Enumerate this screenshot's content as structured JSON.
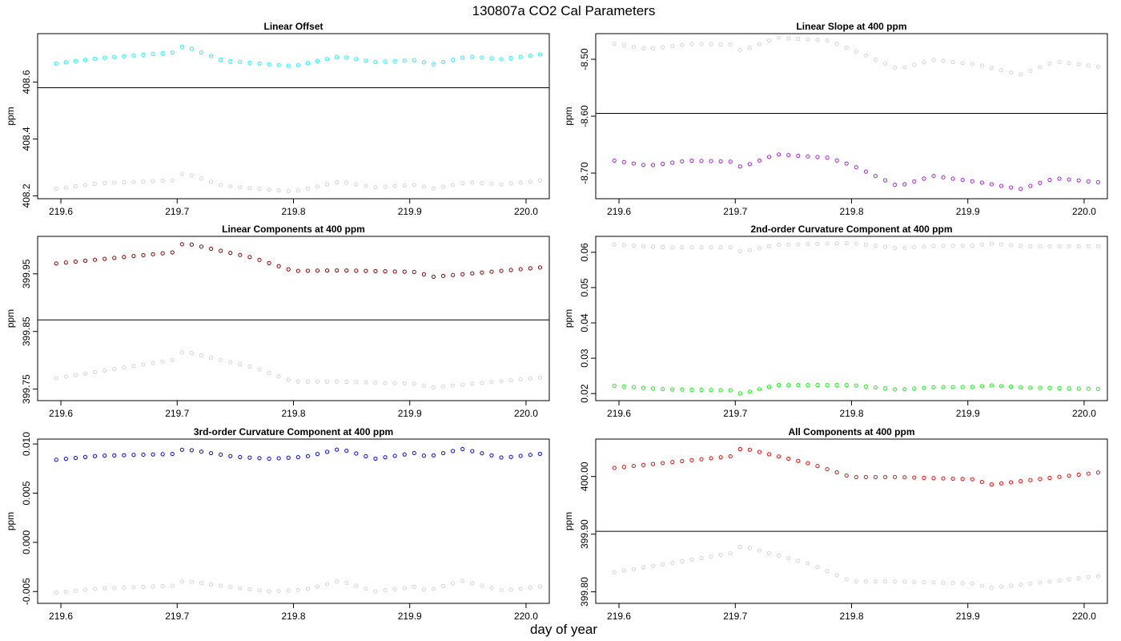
{
  "figure": {
    "title": "130807a   CO2 Cal Parameters",
    "xlabel": "day of year"
  },
  "colors": {
    "reference": "#d3d3d3",
    "hline": "#000000",
    "frame": "#000000"
  },
  "chart_data": [
    {
      "type": "scatter",
      "title": "Linear Offset",
      "xlabel": "",
      "ylabel": "ppm",
      "xlim": [
        219.58,
        220.02
      ],
      "ylim": [
        408.19,
        408.77
      ],
      "x_ticks": [
        "219.6",
        "219.7",
        "219.8",
        "219.9",
        "220.0"
      ],
      "y_ticks": [
        "408.2",
        "408.4",
        "408.6"
      ],
      "y_tick_values": [
        408.2,
        408.4,
        408.6
      ],
      "hline": 408.58,
      "x": {
        "start": 219.596,
        "stop": 220.012,
        "count": 51
      },
      "series": [
        {
          "color": "#00ffff",
          "knots": [
            [
              219.596,
              408.665
            ],
            [
              219.633,
              408.684
            ],
            [
              219.7,
              408.705
            ],
            [
              219.705,
              408.728
            ],
            [
              219.74,
              408.675
            ],
            [
              219.8,
              408.656
            ],
            [
              219.84,
              408.69
            ],
            [
              219.87,
              408.67
            ],
            [
              219.91,
              408.678
            ],
            [
              219.915,
              408.658
            ],
            [
              219.95,
              408.69
            ],
            [
              219.98,
              408.68
            ],
            [
              220.012,
              408.697
            ]
          ]
        },
        {
          "color": "#d3d3d3",
          "knots": [
            [
              219.596,
              408.225
            ],
            [
              219.633,
              408.244
            ],
            [
              219.7,
              408.255
            ],
            [
              219.705,
              408.282
            ],
            [
              219.74,
              408.235
            ],
            [
              219.8,
              408.215
            ],
            [
              219.84,
              408.25
            ],
            [
              219.87,
              408.23
            ],
            [
              219.91,
              408.24
            ],
            [
              219.915,
              408.222
            ],
            [
              219.95,
              408.248
            ],
            [
              219.98,
              408.24
            ],
            [
              220.012,
              408.254
            ]
          ]
        }
      ]
    },
    {
      "type": "scatter",
      "title": "Linear Slope at 400 ppm",
      "xlabel": "",
      "ylabel": "ppm",
      "xlim": [
        219.58,
        220.02
      ],
      "ylim": [
        -8.745,
        -8.455
      ],
      "x_ticks": [
        "219.6",
        "219.7",
        "219.8",
        "219.9",
        "220.0"
      ],
      "y_ticks": [
        "-8.70",
        "-8.60",
        "-8.50"
      ],
      "y_tick_values": [
        -8.7,
        -8.6,
        -8.5
      ],
      "hline": -8.595,
      "x": {
        "start": 219.596,
        "stop": 220.012,
        "count": 51
      },
      "series": [
        {
          "color": "#d3d3d3",
          "knots": [
            [
              219.596,
              -8.473
            ],
            [
              219.625,
              -8.482
            ],
            [
              219.66,
              -8.473
            ],
            [
              219.7,
              -8.474
            ],
            [
              219.705,
              -8.486
            ],
            [
              219.735,
              -8.462
            ],
            [
              219.78,
              -8.467
            ],
            [
              219.8,
              -8.483
            ],
            [
              219.84,
              -8.517
            ],
            [
              219.87,
              -8.501
            ],
            [
              219.91,
              -8.51
            ],
            [
              219.945,
              -8.527
            ],
            [
              219.975,
              -8.504
            ],
            [
              220.012,
              -8.513
            ]
          ]
        },
        {
          "color": "#a020f0",
          "knots": [
            [
              219.596,
              -8.678
            ],
            [
              219.625,
              -8.687
            ],
            [
              219.66,
              -8.678
            ],
            [
              219.7,
              -8.68
            ],
            [
              219.705,
              -8.69
            ],
            [
              219.735,
              -8.667
            ],
            [
              219.78,
              -8.673
            ],
            [
              219.8,
              -8.686
            ],
            [
              219.84,
              -8.723
            ],
            [
              219.87,
              -8.705
            ],
            [
              219.91,
              -8.716
            ],
            [
              219.945,
              -8.728
            ],
            [
              219.975,
              -8.709
            ],
            [
              220.012,
              -8.716
            ]
          ]
        }
      ]
    },
    {
      "type": "scatter",
      "title": "Linear Components at 400 ppm",
      "xlabel": "",
      "ylabel": "ppm",
      "xlim": [
        219.58,
        220.02
      ],
      "ylim": [
        399.73,
        400.015
      ],
      "x_ticks": [
        "219.6",
        "219.7",
        "219.8",
        "219.9",
        "220.0"
      ],
      "y_ticks": [
        "399.75",
        "399.85",
        "399.95"
      ],
      "y_tick_values": [
        399.75,
        399.85,
        399.95
      ],
      "hline": 399.87,
      "x": {
        "start": 219.596,
        "stop": 220.012,
        "count": 51
      },
      "series": [
        {
          "color": "#8b0000",
          "knots": [
            [
              219.596,
              399.968
            ],
            [
              219.7,
              399.988
            ],
            [
              219.705,
              400.004
            ],
            [
              219.765,
              399.978
            ],
            [
              219.8,
              399.955
            ],
            [
              219.84,
              399.956
            ],
            [
              219.91,
              399.953
            ],
            [
              219.915,
              399.944
            ],
            [
              220.012,
              399.961
            ]
          ]
        },
        {
          "color": "#d3d3d3",
          "knots": [
            [
              219.596,
              399.769
            ],
            [
              219.7,
              399.802
            ],
            [
              219.705,
              399.816
            ],
            [
              219.765,
              399.788
            ],
            [
              219.8,
              399.763
            ],
            [
              219.84,
              399.763
            ],
            [
              219.91,
              399.759
            ],
            [
              219.915,
              399.752
            ],
            [
              220.012,
              399.77
            ]
          ]
        }
      ]
    },
    {
      "type": "scatter",
      "title": "2nd-order Curvature Component at 400 ppm",
      "xlabel": "",
      "ylabel": "ppm",
      "xlim": [
        219.58,
        220.02
      ],
      "ylim": [
        0.018,
        0.0645
      ],
      "x_ticks": [
        "219.6",
        "219.7",
        "219.8",
        "219.9",
        "220.0"
      ],
      "y_ticks": [
        "0.02",
        "0.03",
        "0.04",
        "0.05",
        "0.06"
      ],
      "y_tick_values": [
        0.02,
        0.03,
        0.04,
        0.05,
        0.06
      ],
      "hline": null,
      "x": {
        "start": 219.596,
        "stop": 220.012,
        "count": 51
      },
      "series": [
        {
          "color": "#d3d3d3",
          "knots": [
            [
              219.596,
              0.0622
            ],
            [
              219.64,
              0.0614
            ],
            [
              219.7,
              0.0614
            ],
            [
              219.705,
              0.0601
            ],
            [
              219.735,
              0.0621
            ],
            [
              219.8,
              0.0626
            ],
            [
              219.84,
              0.0611
            ],
            [
              219.87,
              0.0618
            ],
            [
              219.91,
              0.0619
            ],
            [
              219.915,
              0.0626
            ],
            [
              219.95,
              0.0617
            ],
            [
              220.012,
              0.0617
            ]
          ]
        },
        {
          "color": "#00ff00",
          "knots": [
            [
              219.596,
              0.0222
            ],
            [
              219.64,
              0.0212
            ],
            [
              219.7,
              0.0209
            ],
            [
              219.705,
              0.0199
            ],
            [
              219.735,
              0.0224
            ],
            [
              219.8,
              0.0224
            ],
            [
              219.84,
              0.0211
            ],
            [
              219.87,
              0.0218
            ],
            [
              219.91,
              0.0219
            ],
            [
              219.915,
              0.0224
            ],
            [
              219.95,
              0.0217
            ],
            [
              220.012,
              0.0213
            ]
          ]
        }
      ]
    },
    {
      "type": "scatter",
      "title": "3rd-order Curvature Component at 400 ppm",
      "xlabel": "",
      "ylabel": "ppm",
      "xlim": [
        219.58,
        220.02
      ],
      "ylim": [
        -0.0062,
        0.0105
      ],
      "x_ticks": [
        "219.6",
        "219.7",
        "219.8",
        "219.9",
        "220.0"
      ],
      "y_ticks": [
        "-0.005",
        "0.000",
        "0.005",
        "0.010"
      ],
      "y_tick_values": [
        -0.005,
        0.0,
        0.005,
        0.01
      ],
      "hline": null,
      "x": {
        "start": 219.596,
        "stop": 220.012,
        "count": 51
      },
      "series": [
        {
          "color": "#0000ff",
          "knots": [
            [
              219.596,
              0.0084
            ],
            [
              219.632,
              0.0088
            ],
            [
              219.7,
              0.009
            ],
            [
              219.705,
              0.0095
            ],
            [
              219.75,
              0.0087
            ],
            [
              219.78,
              0.0085
            ],
            [
              219.81,
              0.0087
            ],
            [
              219.84,
              0.0095
            ],
            [
              219.87,
              0.0085
            ],
            [
              219.905,
              0.0091
            ],
            [
              219.915,
              0.0087
            ],
            [
              219.945,
              0.0095
            ],
            [
              219.98,
              0.0086
            ],
            [
              220.012,
              0.009
            ]
          ]
        },
        {
          "color": "#d3d3d3",
          "knots": [
            [
              219.596,
              -0.0051
            ],
            [
              219.632,
              -0.0047
            ],
            [
              219.7,
              -0.0044
            ],
            [
              219.705,
              -0.0039
            ],
            [
              219.75,
              -0.0046
            ],
            [
              219.78,
              -0.005
            ],
            [
              219.81,
              -0.0048
            ],
            [
              219.84,
              -0.0039
            ],
            [
              219.87,
              -0.005
            ],
            [
              219.905,
              -0.0045
            ],
            [
              219.915,
              -0.0049
            ],
            [
              219.945,
              -0.0039
            ],
            [
              219.98,
              -0.0049
            ],
            [
              220.012,
              -0.0045
            ]
          ]
        }
      ]
    },
    {
      "type": "scatter",
      "title": "All Components at 400 ppm",
      "xlabel": "",
      "ylabel": "ppm",
      "xlim": [
        219.58,
        220.02
      ],
      "ylim": [
        399.78,
        400.065
      ],
      "x_ticks": [
        "219.6",
        "219.7",
        "219.8",
        "219.9",
        "220.0"
      ],
      "y_ticks": [
        "399.80",
        "399.90",
        "400.00"
      ],
      "y_tick_values": [
        399.8,
        399.9,
        400.0
      ],
      "hline": 399.905,
      "x": {
        "start": 219.596,
        "stop": 220.012,
        "count": 51
      },
      "series": [
        {
          "color": "#ff0000",
          "knots": [
            [
              219.596,
              400.015
            ],
            [
              219.7,
              400.036
            ],
            [
              219.705,
              400.05
            ],
            [
              219.765,
              400.022
            ],
            [
              219.8,
              399.999
            ],
            [
              219.84,
              399.999
            ],
            [
              219.91,
              399.995
            ],
            [
              219.915,
              399.985
            ],
            [
              220.012,
              400.007
            ]
          ]
        },
        {
          "color": "#d3d3d3",
          "knots": [
            [
              219.596,
              399.834
            ],
            [
              219.7,
              399.868
            ],
            [
              219.705,
              399.88
            ],
            [
              219.765,
              399.848
            ],
            [
              219.8,
              399.818
            ],
            [
              219.84,
              399.818
            ],
            [
              219.91,
              399.814
            ],
            [
              219.915,
              399.806
            ],
            [
              220.012,
              399.827
            ]
          ]
        }
      ]
    }
  ]
}
